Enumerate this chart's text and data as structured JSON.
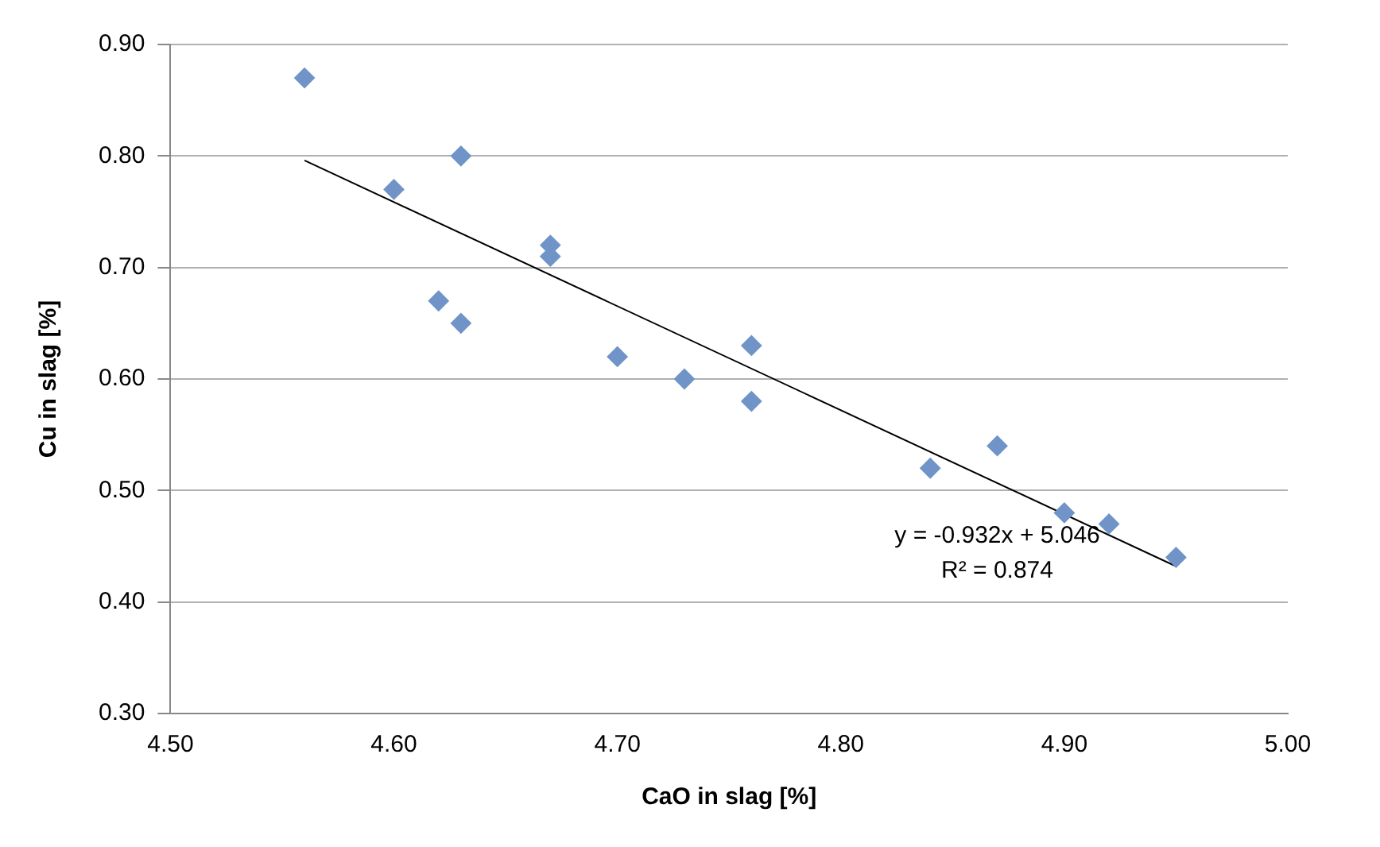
{
  "chart_data": {
    "type": "scatter",
    "xlabel": "CaO in slag [%]",
    "ylabel": "Cu in slag [%]",
    "xlim": [
      4.5,
      5.0
    ],
    "xticks": [
      {
        "value": 4.5,
        "label": "4.50"
      },
      {
        "value": 4.6,
        "label": "4.60"
      },
      {
        "value": 4.7,
        "label": "4.70"
      },
      {
        "value": 4.8,
        "label": "4.80"
      },
      {
        "value": 4.9,
        "label": "4.90"
      },
      {
        "value": 5.0,
        "label": "5.00"
      }
    ],
    "ylim": [
      0.3,
      0.9
    ],
    "yticks": [
      {
        "value": 0.3,
        "label": "0.30"
      },
      {
        "value": 0.4,
        "label": "0.40"
      },
      {
        "value": 0.5,
        "label": "0.50"
      },
      {
        "value": 0.6,
        "label": "0.60"
      },
      {
        "value": 0.7,
        "label": "0.70"
      },
      {
        "value": 0.8,
        "label": "0.80"
      },
      {
        "value": 0.9,
        "label": "0.90"
      }
    ],
    "grid": "y",
    "legend": false,
    "marker": "diamond",
    "series": [
      {
        "color": "#7094c8",
        "x": [
          4.56,
          4.6,
          4.63,
          4.62,
          4.63,
          4.67,
          4.67,
          4.7,
          4.73,
          4.76,
          4.76,
          4.84,
          4.87,
          4.9,
          4.92,
          4.95
        ],
        "values": [
          0.87,
          0.77,
          0.8,
          0.67,
          0.65,
          0.72,
          0.71,
          0.62,
          0.6,
          0.63,
          0.58,
          0.52,
          0.54,
          0.48,
          0.47,
          0.44
        ]
      },
      {
        "type": "line",
        "color": "#000000",
        "marker": "none",
        "x": [
          4.56,
          4.95
        ],
        "values": [
          0.796,
          0.432
        ]
      }
    ],
    "annotations": [
      "y = -0.932x + 5.046",
      "R² = 0.874"
    ]
  }
}
